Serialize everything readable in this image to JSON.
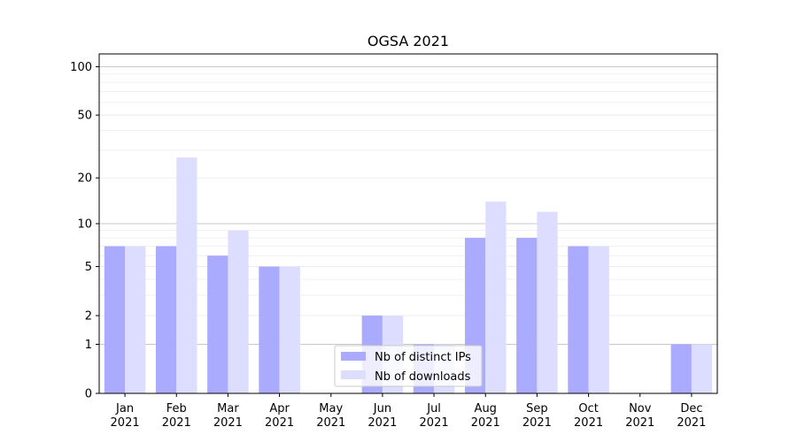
{
  "chart_data": {
    "type": "bar",
    "title": "OGSA 2021",
    "xlabel": "",
    "ylabel": "",
    "y_scale": "symlog",
    "ylim": [
      0,
      120
    ],
    "y_ticks": [
      0,
      1,
      2,
      5,
      10,
      20,
      50,
      100
    ],
    "y_tick_labels": [
      "0",
      "1",
      "2",
      "5",
      "10",
      "20",
      "50",
      "100"
    ],
    "categories": [
      [
        "Jan",
        "2021"
      ],
      [
        "Feb",
        "2021"
      ],
      [
        "Mar",
        "2021"
      ],
      [
        "Apr",
        "2021"
      ],
      [
        "May",
        "2021"
      ],
      [
        "Jun",
        "2021"
      ],
      [
        "Jul",
        "2021"
      ],
      [
        "Aug",
        "2021"
      ],
      [
        "Sep",
        "2021"
      ],
      [
        "Oct",
        "2021"
      ],
      [
        "Nov",
        "2021"
      ],
      [
        "Dec",
        "2021"
      ]
    ],
    "series": [
      {
        "name": "Nb of distinct IPs",
        "color": "#aaaaff",
        "values": [
          7,
          7,
          6,
          5,
          0,
          2,
          1,
          8,
          8,
          7,
          0,
          1
        ]
      },
      {
        "name": "Nb of downloads",
        "color": "#ddddff",
        "values": [
          7,
          27,
          9,
          5,
          0,
          2,
          1,
          14,
          12,
          7,
          0,
          1
        ]
      }
    ],
    "legend_position": "bottom-center",
    "grid": true
  }
}
